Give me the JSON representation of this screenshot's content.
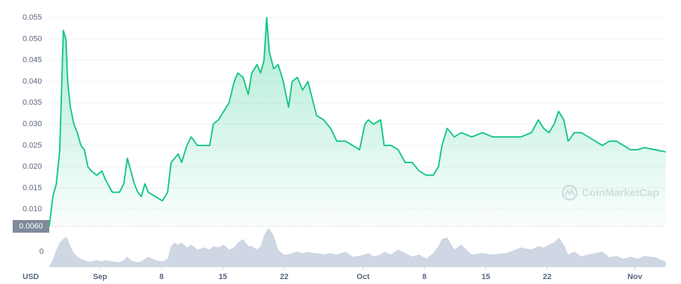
{
  "chart_data": {
    "type": "line",
    "unit_label": "USD",
    "watermark": "CoinMarketCap",
    "x": [
      -5.8,
      -5.4,
      -5.0,
      -4.6,
      -4.2,
      -3.9,
      -3.7,
      -3.4,
      -3.0,
      -2.6,
      -2.2,
      -1.8,
      -1.4,
      -1.0,
      -0.4,
      0.2,
      0.6,
      1.4,
      2.2,
      2.7,
      3.1,
      3.5,
      3.9,
      4.3,
      4.7,
      5.1,
      5.5,
      6.3,
      7.1,
      7.7,
      8.1,
      8.5,
      8.9,
      9.3,
      9.9,
      10.4,
      11.1,
      11.9,
      12.5,
      12.9,
      13.5,
      14.1,
      14.7,
      15.3,
      15.7,
      16.3,
      16.9,
      17.3,
      17.9,
      18.3,
      18.7,
      19.0,
      19.3,
      19.8,
      20.3,
      20.9,
      21.5,
      21.9,
      22.5,
      23.1,
      23.7,
      24.2,
      24.7,
      25.5,
      26.3,
      27.0,
      28.0,
      28.8,
      29.6,
      30.2,
      30.6,
      31.2,
      32.0,
      32.4,
      33.2,
      34.0,
      34.8,
      35.6,
      36.4,
      37.2,
      38.0,
      38.6,
      39.0,
      39.6,
      40.4,
      41.2,
      42.4,
      43.6,
      44.8,
      46.4,
      48.0,
      49.2,
      50.0,
      50.6,
      51.2,
      51.8,
      52.3,
      52.9,
      53.4,
      54.1,
      54.9,
      55.7,
      56.5,
      57.3,
      58.1,
      58.9,
      59.7,
      60.5,
      61.3,
      62.1,
      63.3,
      64.5
    ],
    "price": {
      "color": "#16c784",
      "values": [
        0.006,
        0.013,
        0.016,
        0.024,
        0.052,
        0.05,
        0.04,
        0.034,
        0.03,
        0.028,
        0.025,
        0.024,
        0.02,
        0.019,
        0.018,
        0.019,
        0.017,
        0.014,
        0.014,
        0.016,
        0.022,
        0.019,
        0.016,
        0.014,
        0.013,
        0.016,
        0.014,
        0.013,
        0.012,
        0.014,
        0.021,
        0.022,
        0.023,
        0.021,
        0.025,
        0.027,
        0.025,
        0.025,
        0.025,
        0.03,
        0.031,
        0.033,
        0.035,
        0.04,
        0.042,
        0.041,
        0.037,
        0.042,
        0.044,
        0.042,
        0.045,
        0.055,
        0.047,
        0.043,
        0.044,
        0.04,
        0.034,
        0.04,
        0.041,
        0.038,
        0.04,
        0.036,
        0.032,
        0.031,
        0.029,
        0.026,
        0.026,
        0.025,
        0.024,
        0.03,
        0.031,
        0.03,
        0.031,
        0.025,
        0.025,
        0.024,
        0.021,
        0.021,
        0.019,
        0.018,
        0.018,
        0.02,
        0.025,
        0.029,
        0.027,
        0.028,
        0.027,
        0.028,
        0.027,
        0.027,
        0.027,
        0.028,
        0.031,
        0.029,
        0.028,
        0.03,
        0.033,
        0.031,
        0.026,
        0.028,
        0.028,
        0.027,
        0.026,
        0.025,
        0.026,
        0.026,
        0.025,
        0.024,
        0.024,
        0.0245,
        0.024,
        0.0235
      ]
    },
    "volume": {
      "color": "#cfd6e4",
      "vlim": [
        -11,
        17
      ],
      "vticks": [
        0
      ],
      "values": [
        -10,
        -6,
        1.5,
        6.5,
        9,
        10.5,
        9,
        4,
        -1,
        -3.5,
        -5,
        -6,
        -7,
        -7,
        -6,
        -7,
        -6,
        -7,
        -7.5,
        -6,
        -3.5,
        -6,
        -7,
        -7.5,
        -7,
        -5,
        -3.5,
        -6,
        -7,
        -5,
        4,
        6.5,
        5,
        6.5,
        3,
        5,
        1.5,
        3,
        1.5,
        4,
        3,
        5,
        1.5,
        3,
        6.5,
        9,
        4,
        4,
        1.5,
        4,
        11.5,
        15.5,
        16.5,
        11.5,
        1.5,
        -2,
        -2,
        -1,
        0,
        -1,
        0,
        -1,
        -1,
        -2,
        -1,
        -2,
        0,
        -3.5,
        -3,
        -2,
        -1,
        -3.5,
        -2,
        0,
        -2,
        1.5,
        -1,
        -3.5,
        -2,
        -5,
        -1,
        4,
        9,
        10,
        1.5,
        5,
        -2,
        -1,
        -2,
        -1,
        3,
        1.5,
        4,
        3,
        5,
        6.5,
        10,
        5,
        -2,
        0,
        -3.5,
        -2,
        -1,
        0,
        -4,
        -3,
        -5,
        -3.5,
        -5,
        -3,
        -4,
        -7
      ]
    },
    "xlim": [
      -5.8,
      64.5
    ],
    "xticks": [
      {
        "value": 0,
        "label": "Sep"
      },
      {
        "value": 7,
        "label": "8"
      },
      {
        "value": 14,
        "label": "15"
      },
      {
        "value": 21,
        "label": "22"
      },
      {
        "value": 30,
        "label": "Oct"
      },
      {
        "value": 37,
        "label": "8"
      },
      {
        "value": 44,
        "label": "15"
      },
      {
        "value": 51,
        "label": "22"
      },
      {
        "value": 61,
        "label": "Nov"
      }
    ],
    "ylim": [
      0.006,
      0.0575
    ],
    "yticks": [
      {
        "value": 0.01,
        "label": "0.010"
      },
      0.015,
      {
        "value": 0.02,
        "label": "0.020"
      },
      0.025,
      {
        "value": 0.03,
        "label": "0.030"
      },
      0.035,
      {
        "value": 0.04,
        "label": "0.040"
      },
      0.045,
      {
        "value": 0.05,
        "label": "0.050"
      },
      0.055
    ],
    "marker": {
      "value": 0.006,
      "label": "0.0060"
    },
    "grid": true
  }
}
